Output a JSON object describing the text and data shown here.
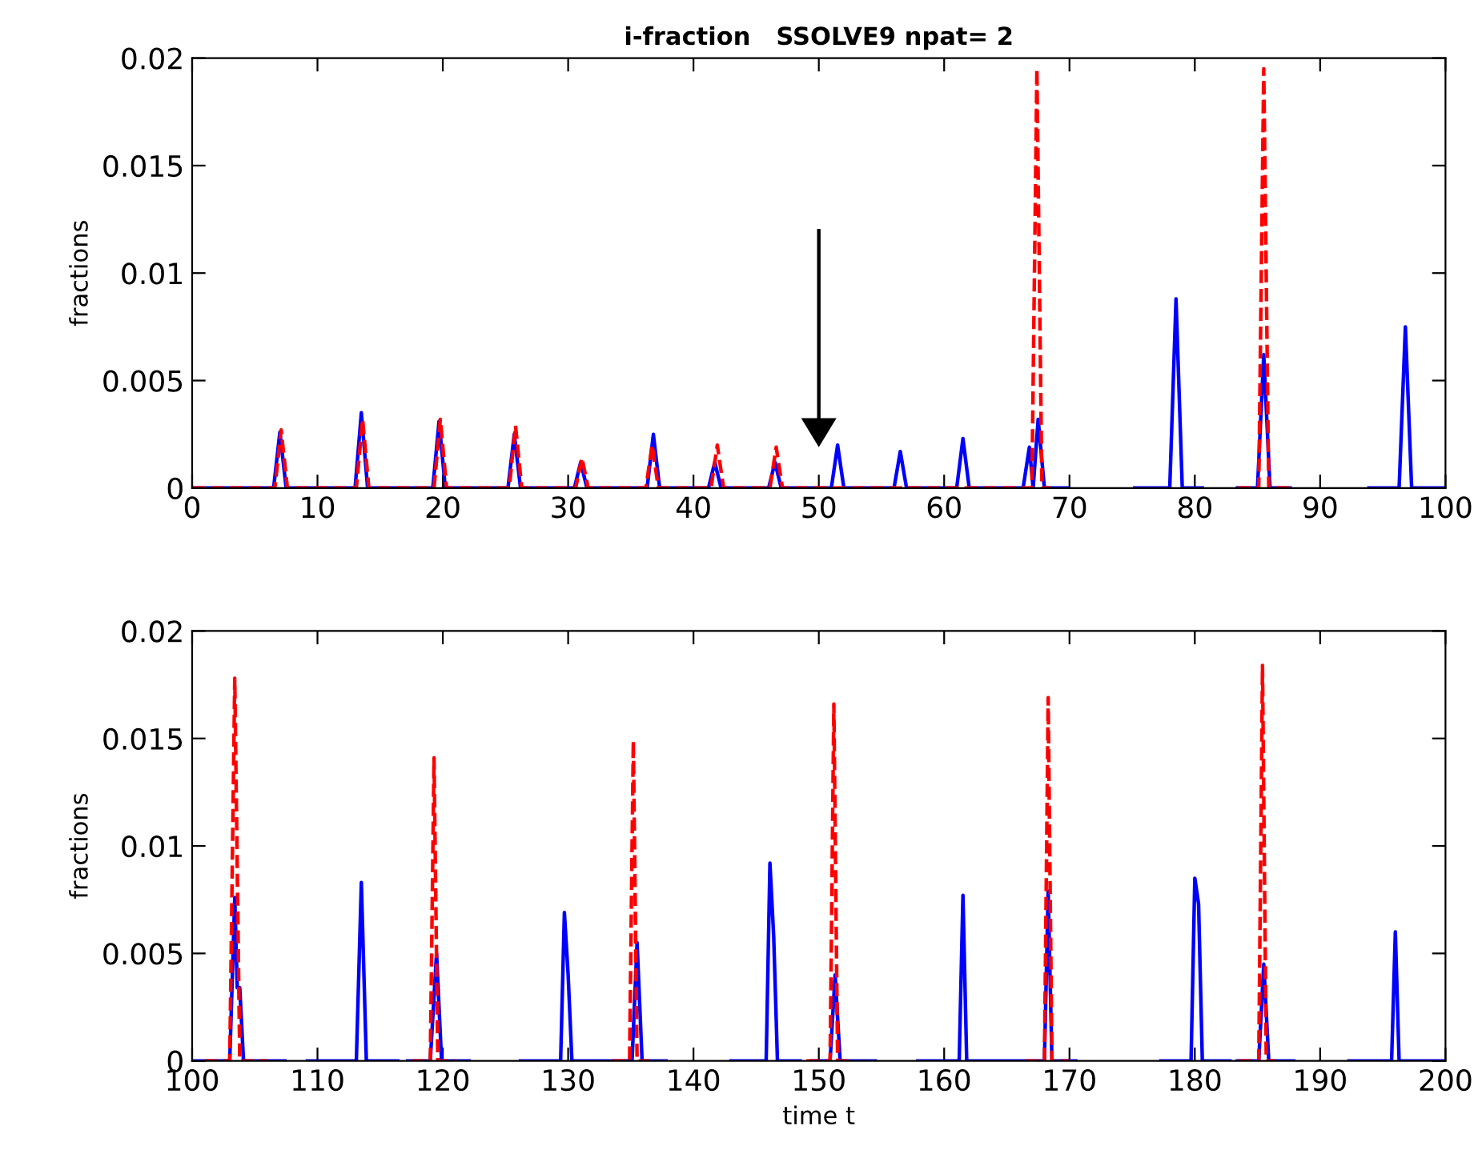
{
  "chart_data": [
    {
      "type": "line",
      "title": "i-fraction   SSOLVE9 npat= 2",
      "ylabel": "fractions",
      "xlim": [
        0,
        100
      ],
      "xticks": [
        0,
        10,
        20,
        30,
        40,
        50,
        60,
        70,
        80,
        90,
        100
      ],
      "ylim": [
        0,
        0.02
      ],
      "yticks": [
        0,
        0.005,
        0.01,
        0.015,
        0.02
      ],
      "series": [
        {
          "color": "#0000ff",
          "line_style": "solid",
          "x": [
            0,
            6.5,
            7,
            7.5,
            13,
            13.5,
            14,
            19.2,
            19.7,
            20.2,
            25.2,
            25.7,
            26.2,
            30.5,
            31,
            31.5,
            36.3,
            36.8,
            37.3,
            41.2,
            41.7,
            42.2,
            46,
            46.5,
            47,
            51,
            51.5,
            52,
            56,
            56.5,
            57,
            61,
            61.5,
            62,
            66.3,
            66.8,
            67.1,
            67.5,
            68,
            69.9,
            72,
            75.2,
            78,
            78.5,
            79,
            80.6,
            82,
            83.4,
            85,
            85.5,
            86,
            87.6,
            91,
            93.9,
            96.3,
            96.8,
            97.3,
            100
          ],
          "values": [
            0,
            0,
            0.0026,
            0,
            0,
            0.0035,
            0,
            0,
            0.0031,
            0,
            0,
            0.0025,
            0,
            0,
            0.0012,
            0,
            0,
            0.0025,
            0,
            0,
            0.0012,
            0,
            0,
            0.0012,
            0,
            0,
            0.002,
            0,
            0,
            0.0017,
            0,
            0,
            0.0023,
            0,
            0,
            0.0019,
            0,
            0.0032,
            0,
            0,
            null,
            0,
            0,
            0.0088,
            0,
            0,
            null,
            0,
            0,
            0.0062,
            0,
            0,
            null,
            0,
            0,
            0.0075,
            0,
            0
          ]
        },
        {
          "color": "#ff0000",
          "line_style": "dashed",
          "x": [
            0,
            6.6,
            7.1,
            7.6,
            13.1,
            13.6,
            14.1,
            19.3,
            19.8,
            20.3,
            25.3,
            25.8,
            26.3,
            30.6,
            31.1,
            31.6,
            36.2,
            36.7,
            37.2,
            41.4,
            41.9,
            42.4,
            46.1,
            46.6,
            47.1,
            67,
            67.4,
            67.8,
            68.5,
            75,
            83.4,
            85.1,
            85.5,
            85.9,
            87.6
          ],
          "values": [
            0,
            0,
            0.0027,
            0,
            0,
            0.0032,
            0,
            0,
            0.0032,
            0,
            0,
            0.0029,
            0,
            0,
            0.0014,
            0,
            0,
            0.002,
            0,
            0,
            0.002,
            0,
            0,
            0.0019,
            0,
            0,
            0.0195,
            0,
            0,
            null,
            0,
            0,
            0.0195,
            0,
            0
          ]
        }
      ]
    },
    {
      "type": "line",
      "xlabel": "time t",
      "ylabel": "fractions",
      "xlim": [
        100,
        200
      ],
      "xticks": [
        100,
        110,
        120,
        130,
        140,
        150,
        160,
        170,
        180,
        190,
        200
      ],
      "ylim": [
        0,
        0.02
      ],
      "yticks": [
        0,
        0.005,
        0.01,
        0.015,
        0.02
      ],
      "series": [
        {
          "color": "#0000ff",
          "line_style": "solid",
          "x": [
            100,
            103,
            103.4,
            103.6,
            103.8,
            104.1,
            107.4,
            108.3,
            109.2,
            113.1,
            113.5,
            113.9,
            116.4,
            116.8,
            117.2,
            119,
            119.5,
            119.9,
            122.1,
            124,
            126.2,
            129.4,
            129.7,
            130,
            130.3,
            133.2,
            133.35,
            133.5,
            135.1,
            135.5,
            135.9,
            137.8,
            140,
            143,
            145.8,
            146.1,
            146.4,
            146.7,
            148.5,
            149,
            149.4,
            150.9,
            151.3,
            151.7,
            154.5,
            156,
            157.9,
            161.2,
            161.5,
            161.8,
            168,
            168.3,
            168.6,
            170.5,
            174,
            177.3,
            179.7,
            180,
            180.3,
            180.6,
            182.8,
            183.1,
            183.4,
            185.1,
            185.5,
            185.9,
            187.9,
            190,
            192.3,
            195.7,
            196,
            196.3,
            200
          ],
          "values": [
            0,
            0,
            0.0076,
            0.0034,
            0.0034,
            0,
            0,
            null,
            0,
            0,
            0.0083,
            0,
            0,
            null,
            0,
            0,
            0.005,
            0,
            0,
            null,
            0,
            0,
            0.0069,
            0.004,
            0,
            0,
            null,
            0,
            0,
            0.0055,
            0,
            0,
            null,
            0,
            0,
            0.0092,
            0.0058,
            0,
            0,
            null,
            0,
            0,
            0.004,
            0,
            0,
            null,
            0,
            0,
            0.0077,
            0,
            0,
            0.0079,
            0,
            0,
            null,
            0,
            0,
            0.0085,
            0.0073,
            0,
            0,
            null,
            0,
            0,
            0.0045,
            0,
            0,
            null,
            0,
            0,
            0.006,
            0,
            0
          ]
        },
        {
          "color": "#ff0000",
          "line_style": "dashed",
          "x": [
            101,
            103,
            103.4,
            103.8,
            106,
            111,
            117.5,
            119,
            119.3,
            119.6,
            121,
            127,
            133.5,
            134.9,
            135.2,
            135.5,
            136.5,
            142,
            149,
            150.9,
            151.2,
            151.5,
            152.5,
            159,
            166.5,
            168,
            168.3,
            168.6,
            170,
            177,
            183.5,
            185.1,
            185.4,
            185.7,
            186.5
          ],
          "values": [
            0,
            0,
            0.0178,
            0,
            0,
            null,
            0,
            0,
            0.0141,
            0,
            0,
            null,
            0,
            0,
            0.0149,
            0,
            0,
            null,
            0,
            0,
            0.0166,
            0,
            0,
            null,
            0,
            0,
            0.0169,
            0,
            0,
            null,
            0,
            0,
            0.0184,
            0,
            0
          ]
        }
      ]
    }
  ]
}
